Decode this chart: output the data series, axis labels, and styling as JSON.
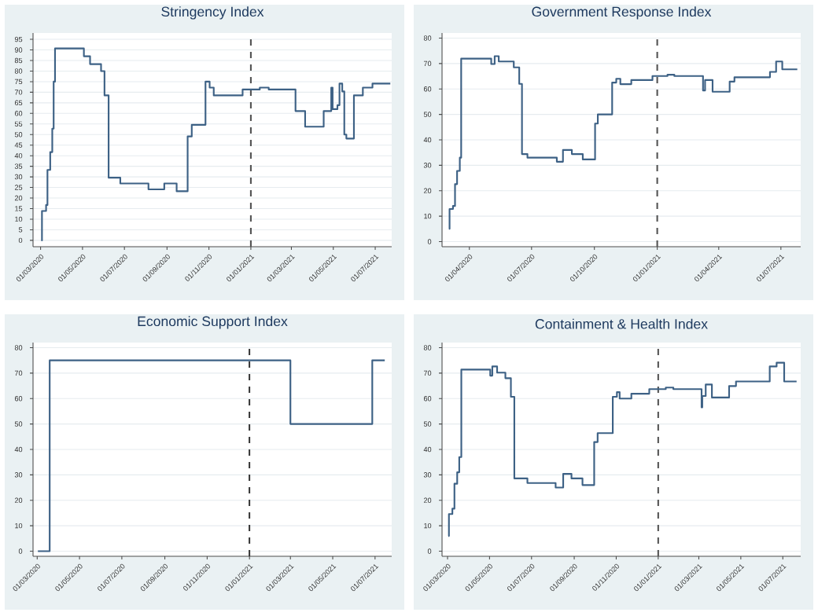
{
  "chart_data": [
    {
      "type": "step",
      "title": "Stringency Index",
      "color": "#3d6185",
      "grid": "y",
      "x": [
        "2020-03-02",
        "2020-03-03",
        "2020-03-09",
        "2020-03-11",
        "2020-03-15",
        "2020-03-18",
        "2020-03-20",
        "2020-03-22",
        "2020-05-03",
        "2020-05-12",
        "2020-05-28",
        "2020-06-02",
        "2020-06-08",
        "2020-06-25",
        "2020-08-05",
        "2020-08-28",
        "2020-09-15",
        "2020-10-01",
        "2020-10-07",
        "2020-10-27",
        "2020-11-02",
        "2020-11-08",
        "2020-12-20",
        "2021-01-14",
        "2021-01-27",
        "2021-03-07",
        "2021-03-21",
        "2021-04-17",
        "2021-04-28",
        "2021-04-30",
        "2021-05-07",
        "2021-05-10",
        "2021-05-14",
        "2021-05-17",
        "2021-05-20",
        "2021-05-31",
        "2021-06-13",
        "2021-06-27",
        "2021-07-23"
      ],
      "values": [
        0,
        13.9,
        16.7,
        33.3,
        41.7,
        52.8,
        75,
        90.7,
        87,
        83.3,
        80,
        68.5,
        29.6,
        26.9,
        24.1,
        26.9,
        23.2,
        49.1,
        54.6,
        75,
        72.2,
        68.5,
        71.3,
        72.2,
        71.3,
        61.1,
        53.7,
        61.1,
        72.2,
        62,
        63.9,
        74.1,
        70.4,
        50,
        48.1,
        68.5,
        72.2,
        74.1,
        74.1
      ],
      "xlim": [
        "2020-02-19",
        "2021-07-25"
      ],
      "xticks": [
        {
          "value": "2020-03-01",
          "label": "01/03/2020"
        },
        {
          "value": "2020-05-01",
          "label": "01/05/2020"
        },
        {
          "value": "2020-07-01",
          "label": "01/07/2020"
        },
        {
          "value": "2020-09-01",
          "label": "01/09/2020"
        },
        {
          "value": "2020-11-01",
          "label": "01/11/2020"
        },
        {
          "value": "2021-01-01",
          "label": "01/01/2021"
        },
        {
          "value": "2021-03-01",
          "label": "01/03/2021"
        },
        {
          "value": "2021-05-01",
          "label": "01/05/2021"
        },
        {
          "value": "2021-07-01",
          "label": "01/07/2021"
        }
      ],
      "ylim": [
        -3,
        98
      ],
      "yticks": [
        0,
        5,
        10,
        15,
        20,
        25,
        30,
        35,
        40,
        45,
        50,
        55,
        60,
        65,
        70,
        75,
        80,
        85,
        90,
        95
      ],
      "ref_lines": [
        {
          "axis": "x",
          "value": "2021-01-01",
          "line_style": "dashed",
          "color": "#555555"
        }
      ]
    },
    {
      "type": "step",
      "title": "Government Response Index",
      "color": "#3d6185",
      "grid": "y",
      "x": [
        "2020-03-02",
        "2020-03-03",
        "2020-03-08",
        "2020-03-11",
        "2020-03-14",
        "2020-03-18",
        "2020-03-20",
        "2020-05-03",
        "2020-05-08",
        "2020-05-14",
        "2020-06-05",
        "2020-06-13",
        "2020-06-17",
        "2020-06-25",
        "2020-08-07",
        "2020-08-16",
        "2020-08-29",
        "2020-09-14",
        "2020-10-02",
        "2020-10-06",
        "2020-10-27",
        "2020-11-02",
        "2020-11-08",
        "2020-11-24",
        "2020-12-25",
        "2021-01-16",
        "2021-01-26",
        "2021-03-09",
        "2021-03-12",
        "2021-03-23",
        "2021-04-17",
        "2021-04-24",
        "2021-06-15",
        "2021-06-24",
        "2021-07-03",
        "2021-07-25"
      ],
      "values": [
        5,
        12.8,
        14,
        22.6,
        27.8,
        33,
        71.9,
        69.8,
        72.9,
        70.8,
        68.5,
        62,
        34.4,
        33,
        31.4,
        36,
        34.4,
        32.3,
        46.4,
        50,
        62.5,
        64,
        61.9,
        63.5,
        65.1,
        65.6,
        65.1,
        59.4,
        63.5,
        58.9,
        62.9,
        64.6,
        66.7,
        70.8,
        67.7,
        67.7
      ],
      "xlim": [
        "2020-02-21",
        "2021-07-30"
      ],
      "xticks": [
        {
          "value": "2020-04-01",
          "label": "01/04/2020"
        },
        {
          "value": "2020-07-01",
          "label": "01/07/2020"
        },
        {
          "value": "2020-10-01",
          "label": "01/10/2020"
        },
        {
          "value": "2021-01-01",
          "label": "01/01/2021"
        },
        {
          "value": "2021-04-01",
          "label": "01/04/2021"
        },
        {
          "value": "2021-07-01",
          "label": "01/07/2021"
        }
      ],
      "ylim": [
        -2,
        82
      ],
      "yticks": [
        0,
        10,
        20,
        30,
        40,
        50,
        60,
        70,
        80
      ],
      "ref_lines": [
        {
          "axis": "x",
          "value": "2021-01-01",
          "line_style": "dashed",
          "color": "#555555"
        }
      ]
    },
    {
      "type": "step",
      "title": "Economic Support Index",
      "color": "#3d6185",
      "grid": "y",
      "x": [
        "2020-03-02",
        "2020-03-19",
        "2021-03-01",
        "2021-06-27",
        "2021-07-15"
      ],
      "values": [
        0,
        75,
        50,
        75,
        75
      ],
      "xlim": [
        "2020-02-24",
        "2021-07-25"
      ],
      "xticks": [
        {
          "value": "2020-03-01",
          "label": "01/03/2020"
        },
        {
          "value": "2020-05-01",
          "label": "01/05/2020"
        },
        {
          "value": "2020-07-01",
          "label": "01/07/2020"
        },
        {
          "value": "2020-09-01",
          "label": "01/09/2020"
        },
        {
          "value": "2020-11-01",
          "label": "01/11/2020"
        },
        {
          "value": "2021-01-01",
          "label": "01/01/2021"
        },
        {
          "value": "2021-03-01",
          "label": "01/03/2021"
        },
        {
          "value": "2021-05-01",
          "label": "01/05/2021"
        },
        {
          "value": "2021-07-01",
          "label": "01/07/2021"
        }
      ],
      "ylim": [
        -2,
        82
      ],
      "yticks": [
        0,
        10,
        20,
        30,
        40,
        50,
        60,
        70,
        80
      ],
      "ref_lines": [
        {
          "axis": "x",
          "value": "2021-01-01",
          "line_style": "dashed",
          "color": "#333333"
        }
      ]
    },
    {
      "type": "step",
      "title": "Containment & Health Index",
      "color": "#3d6185",
      "grid": "y",
      "x": [
        "2020-03-02",
        "2020-03-03",
        "2020-03-08",
        "2020-03-11",
        "2020-03-15",
        "2020-03-18",
        "2020-03-21",
        "2020-05-02",
        "2020-05-05",
        "2020-05-12",
        "2020-05-24",
        "2020-06-01",
        "2020-06-06",
        "2020-06-25",
        "2020-08-05",
        "2020-08-16",
        "2020-08-28",
        "2020-09-13",
        "2020-09-30",
        "2020-10-05",
        "2020-10-27",
        "2020-11-02",
        "2020-11-06",
        "2020-11-23",
        "2020-12-19",
        "2021-01-12",
        "2021-01-23",
        "2021-03-05",
        "2021-03-06",
        "2021-03-11",
        "2021-03-20",
        "2021-04-14",
        "2021-04-24",
        "2021-06-12",
        "2021-06-22",
        "2021-07-03",
        "2021-07-21"
      ],
      "values": [
        6,
        14.6,
        16.7,
        26.5,
        31,
        37,
        71.4,
        69,
        72.6,
        70.2,
        68,
        60.7,
        28.6,
        26.8,
        25,
        30.4,
        28.6,
        26,
        42.9,
        46.4,
        60.7,
        62.5,
        60,
        61.9,
        63.7,
        64.3,
        63.7,
        56.5,
        61,
        65.5,
        60.4,
        64.9,
        66.7,
        72.6,
        74.1,
        66.7,
        66.7
      ],
      "xlim": [
        "2020-02-22",
        "2021-07-27"
      ],
      "xticks": [
        {
          "value": "2020-03-01",
          "label": "01/03/2020"
        },
        {
          "value": "2020-05-01",
          "label": "01/05/2020"
        },
        {
          "value": "2020-07-01",
          "label": "01/07/2020"
        },
        {
          "value": "2020-09-01",
          "label": "01/09/2020"
        },
        {
          "value": "2020-11-01",
          "label": "01/11/2020"
        },
        {
          "value": "2021-01-01",
          "label": "01/01/2021"
        },
        {
          "value": "2021-03-01",
          "label": "01/03/2021"
        },
        {
          "value": "2021-05-01",
          "label": "01/05/2021"
        },
        {
          "value": "2021-07-01",
          "label": "01/07/2021"
        }
      ],
      "ylim": [
        -2,
        82
      ],
      "yticks": [
        0,
        10,
        20,
        30,
        40,
        50,
        60,
        70,
        80
      ],
      "ref_lines": [
        {
          "axis": "x",
          "value": "2021-01-01",
          "line_style": "dashed",
          "color": "#555555"
        }
      ]
    }
  ]
}
